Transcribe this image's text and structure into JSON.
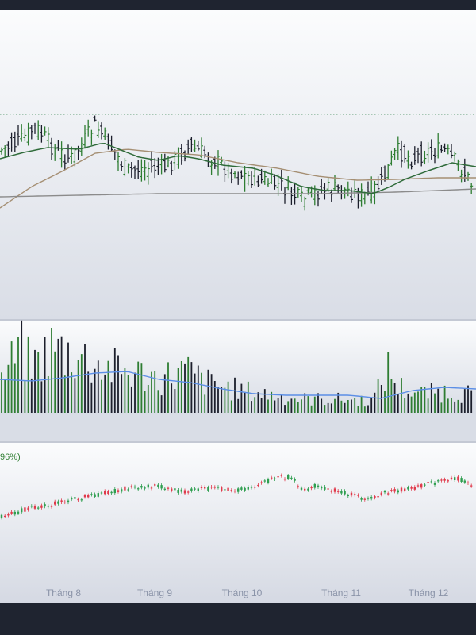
{
  "colors": {
    "frame": "#1f2430",
    "bar_up": "#2e7d32",
    "bar_down": "#1b1e2b",
    "ma_short": "#2f6b3a",
    "ma_mid": "#a58f73",
    "ma_long": "#8b8b8b",
    "volume_ma": "#5b8ee6",
    "candle_up": "#2e9e4f",
    "candle_down": "#e0394a",
    "ref_line": "#5c9b74"
  },
  "comparison_label": "96%)",
  "chart_data": [
    {
      "type": "bar",
      "panel": "price",
      "style": "ohlc",
      "reference_line": true,
      "moving_averages": [
        "short",
        "mid",
        "long"
      ]
    },
    {
      "type": "bar",
      "panel": "volume",
      "moving_average": true
    },
    {
      "type": "line",
      "panel": "comparison",
      "style": "candlestick",
      "x_ticks": [
        "Tháng 8",
        "Tháng 9",
        "Tháng 10",
        "Tháng 11",
        "Tháng 12"
      ]
    }
  ]
}
